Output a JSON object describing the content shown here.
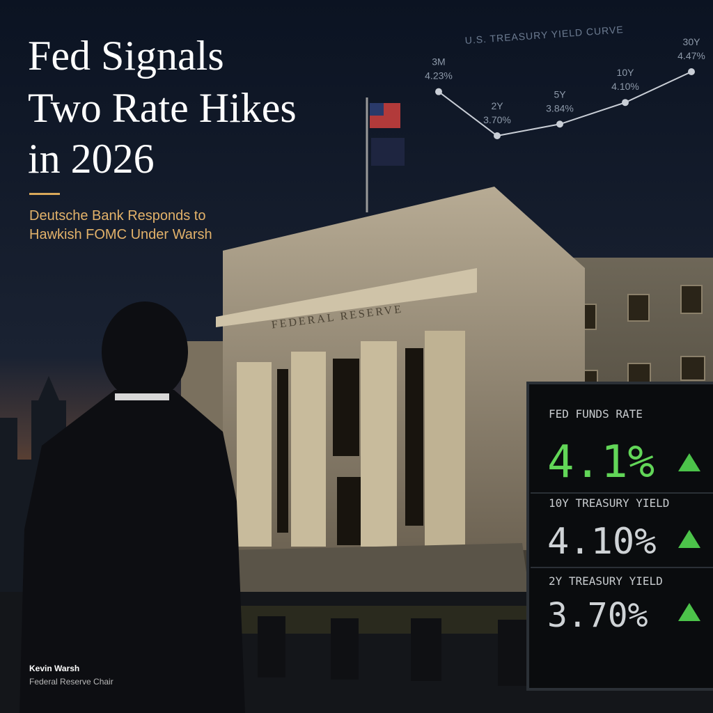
{
  "header": {
    "title_lines": [
      "Fed Signals",
      "Two Rate Hikes",
      "in 2026"
    ],
    "subtitle_lines": [
      "Deutsche Bank Responds to",
      "Hawkish FOMC Under Warsh"
    ]
  },
  "yield_curve": {
    "type": "line",
    "title": "U.S. TREASURY YIELD CURVE",
    "categories": [
      "3M",
      "2Y",
      "5Y",
      "10Y",
      "30Y"
    ],
    "values": [
      4.23,
      3.7,
      3.84,
      4.1,
      4.47
    ],
    "value_labels": [
      "4.23%",
      "3.70%",
      "3.84%",
      "4.10%",
      "4.47%"
    ],
    "color": "#c9ced6"
  },
  "building": {
    "inscription": "FEDERAL RESERVE"
  },
  "board": {
    "rows": [
      {
        "label": "FED FUNDS RATE",
        "value": "4.1%"
      },
      {
        "label": "10Y TREASURY YIELD",
        "value": "4.10%"
      },
      {
        "label": "2Y TREASURY YIELD",
        "value": "3.70%"
      }
    ]
  },
  "caption": {
    "name": "Kevin Warsh",
    "role": "Federal Reserve Chair"
  }
}
